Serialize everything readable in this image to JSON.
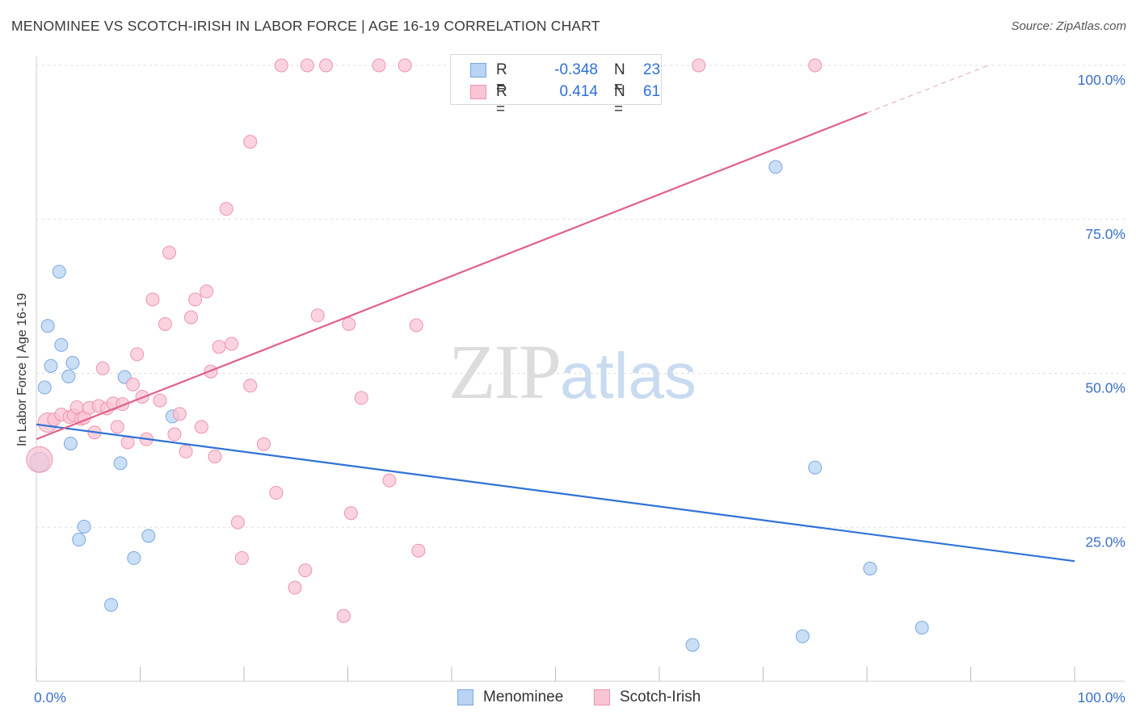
{
  "title": "MENOMINEE VS SCOTCH-IRISH IN LABOR FORCE | AGE 16-19 CORRELATION CHART",
  "source": "Source: ZipAtlas.com",
  "watermark": {
    "zip": "ZIP",
    "atlas": "atlas"
  },
  "legend": {
    "menominee": {
      "r_label": "R =",
      "r_value": "-0.348",
      "n_label": "N =",
      "n_value": "23"
    },
    "scotch_irish": {
      "r_label": "R =",
      "r_value": "0.414",
      "n_label": "N =",
      "n_value": "61"
    }
  },
  "bottom_legend": {
    "menominee": "Menominee",
    "scotch_irish": "Scotch-Irish"
  },
  "colors": {
    "menominee_fill": "#b8d3f3",
    "menominee_stroke": "#7aa7e0",
    "menominee_line": "#2f72d6",
    "scotch_fill": "#f9c4d4",
    "scotch_stroke": "#ef93ae",
    "scotch_line": "#e0608a",
    "axis_label": "#3a70c8",
    "grid": "#dddddd"
  },
  "chart_data": {
    "type": "scatter",
    "title": "MENOMINEE VS SCOTCH-IRISH IN LABOR FORCE | AGE 16-19 CORRELATION CHART",
    "xlabel": "",
    "ylabel": "In Labor Force | Age 16-19",
    "xlim": [
      0,
      100
    ],
    "ylim": [
      0,
      102
    ],
    "x_tick_labels": [
      {
        "value": 0,
        "label": "0.0%"
      },
      {
        "value": 100,
        "label": "100.0%"
      }
    ],
    "y_tick_labels": [
      {
        "value": 25,
        "label": "25.0%"
      },
      {
        "value": 50,
        "label": "50.0%"
      },
      {
        "value": 75,
        "label": "75.0%"
      },
      {
        "value": 100,
        "label": "100.0%"
      }
    ],
    "series": [
      {
        "name": "Menominee",
        "points": [
          [
            0.3,
            35.6
          ],
          [
            0.8,
            47.7
          ],
          [
            1.1,
            57.7
          ],
          [
            1.4,
            51.2
          ],
          [
            2.2,
            66.5
          ],
          [
            2.4,
            54.6
          ],
          [
            3.1,
            49.5
          ],
          [
            3.3,
            38.6
          ],
          [
            3.5,
            51.7
          ],
          [
            4.1,
            23.0
          ],
          [
            4.6,
            25.1
          ],
          [
            7.2,
            12.4
          ],
          [
            8.1,
            35.4
          ],
          [
            8.5,
            49.4
          ],
          [
            9.4,
            20.0
          ],
          [
            10.8,
            23.6
          ],
          [
            13.1,
            43.0
          ],
          [
            63.2,
            5.9
          ],
          [
            71.2,
            83.5
          ],
          [
            73.8,
            7.3
          ],
          [
            75.0,
            34.7
          ],
          [
            80.3,
            18.3
          ],
          [
            85.3,
            8.7
          ]
        ],
        "trend": {
          "x": [
            0,
            100
          ],
          "y": [
            41.7,
            19.5
          ]
        }
      },
      {
        "name": "Scotch-Irish",
        "points": [
          [
            0.3,
            36.0
          ],
          [
            1.1,
            42.0
          ],
          [
            1.7,
            42.5
          ],
          [
            2.4,
            43.3
          ],
          [
            3.2,
            42.9
          ],
          [
            3.6,
            43.2
          ],
          [
            3.9,
            44.5
          ],
          [
            4.3,
            42.6
          ],
          [
            4.6,
            42.8
          ],
          [
            5.1,
            44.4
          ],
          [
            5.6,
            40.4
          ],
          [
            6.0,
            44.7
          ],
          [
            6.4,
            50.8
          ],
          [
            6.8,
            44.3
          ],
          [
            7.4,
            45.1
          ],
          [
            7.8,
            41.3
          ],
          [
            8.3,
            45.0
          ],
          [
            8.8,
            38.8
          ],
          [
            9.3,
            48.2
          ],
          [
            9.7,
            53.1
          ],
          [
            10.2,
            46.2
          ],
          [
            10.6,
            39.3
          ],
          [
            11.2,
            62.0
          ],
          [
            11.9,
            45.6
          ],
          [
            12.4,
            58.0
          ],
          [
            12.8,
            69.6
          ],
          [
            13.3,
            40.1
          ],
          [
            13.8,
            43.4
          ],
          [
            14.4,
            37.3
          ],
          [
            14.9,
            59.1
          ],
          [
            15.3,
            62.0
          ],
          [
            15.9,
            41.3
          ],
          [
            16.4,
            63.3
          ],
          [
            16.8,
            50.3
          ],
          [
            17.2,
            36.5
          ],
          [
            17.6,
            54.3
          ],
          [
            18.3,
            76.7
          ],
          [
            18.8,
            54.8
          ],
          [
            19.4,
            25.8
          ],
          [
            19.8,
            20.0
          ],
          [
            20.6,
            48.0
          ],
          [
            20.6,
            87.6
          ],
          [
            21.9,
            38.5
          ],
          [
            23.1,
            30.6
          ],
          [
            23.6,
            100
          ],
          [
            24.9,
            15.2
          ],
          [
            25.9,
            18.0
          ],
          [
            26.1,
            100
          ],
          [
            27.1,
            59.4
          ],
          [
            27.9,
            100
          ],
          [
            29.6,
            10.6
          ],
          [
            30.1,
            58.0
          ],
          [
            30.3,
            27.3
          ],
          [
            31.3,
            46.0
          ],
          [
            33.0,
            100
          ],
          [
            34.0,
            32.6
          ],
          [
            35.5,
            100
          ],
          [
            36.6,
            57.8
          ],
          [
            36.8,
            21.2
          ],
          [
            63.8,
            100
          ],
          [
            75.0,
            100
          ]
        ],
        "trend": {
          "x": [
            0,
            80
          ],
          "y": [
            39.3,
            92.3
          ]
        },
        "trend_dashed": {
          "x": [
            80,
            92
          ],
          "y": [
            92.3,
            100.2
          ]
        }
      }
    ]
  }
}
